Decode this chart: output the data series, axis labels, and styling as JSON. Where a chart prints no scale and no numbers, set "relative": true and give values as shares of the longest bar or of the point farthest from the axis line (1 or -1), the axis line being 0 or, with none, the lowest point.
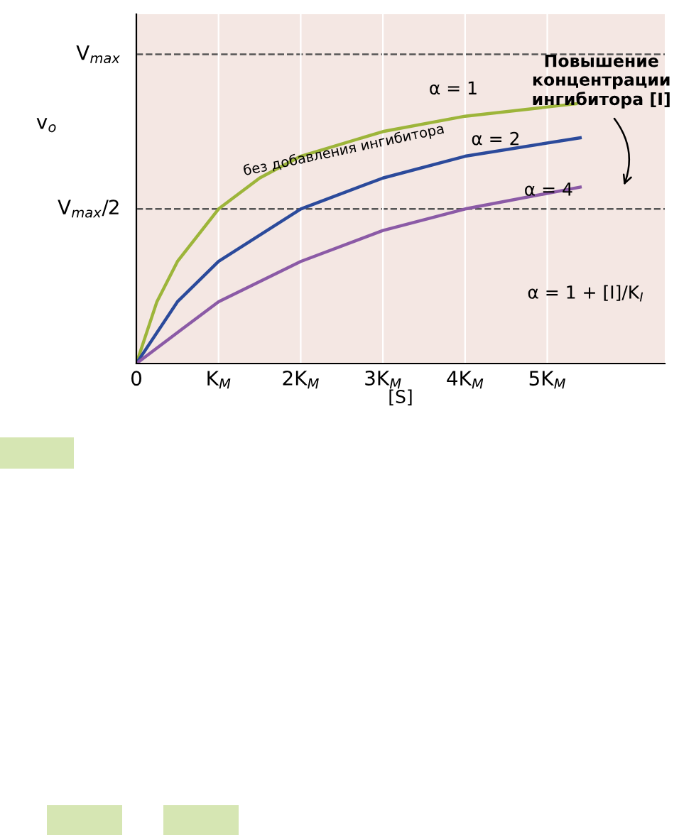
{
  "chart_data": {
    "type": "line",
    "relative": true,
    "xlabel": "[S]",
    "ylabel": "v$_{o}$",
    "xlim": [
      0,
      6.43
    ],
    "xticks": [
      0,
      {
        "value": 1,
        "label": "K$_{M}$"
      },
      {
        "value": 2,
        "label": "2K$_{M}$"
      },
      {
        "value": 3,
        "label": "3K$_{M}$"
      },
      {
        "value": 4,
        "label": "4K$_{M}$"
      },
      {
        "value": 5,
        "label": "5K$_{M}$"
      }
    ],
    "grid": "x",
    "legend": false,
    "marker": "none",
    "line_style": "solid",
    "ref_lines": [
      {
        "axis": "y",
        "value": 1.19,
        "label": "V$_{max}$",
        "color": "#555555",
        "line_style": "dashed"
      },
      {
        "axis": "y",
        "value": 0.595,
        "label": "V$_{max}$/2",
        "color": "#555555",
        "line_style": "dashed"
      }
    ],
    "series": [
      {
        "color": "#9db53a",
        "x": [
          0,
          0.25,
          0.5,
          1,
          1.5,
          2,
          3,
          4,
          5.35
        ],
        "values": [
          0,
          0.238,
          0.393,
          0.595,
          0.714,
          0.798,
          0.893,
          0.952,
          1
        ]
      },
      {
        "color": "#2b4a9b",
        "x": [
          0,
          0.5,
          1,
          2,
          3,
          4,
          5.4
        ],
        "values": [
          0,
          0.238,
          0.393,
          0.595,
          0.714,
          0.798,
          0.869
        ]
      },
      {
        "color": "#8b5aa6",
        "x": [
          0,
          1,
          2,
          3,
          4,
          5.4
        ],
        "values": [
          0,
          0.238,
          0.393,
          0.512,
          0.595,
          0.679
        ]
      }
    ],
    "annotations": [
      "α = 1",
      "α = 2",
      "α = 4",
      "без добавления ингибитора",
      "Повышение\nконцентрации\nингибитора [I]",
      "α = 1 + [I]/K$_{I}$"
    ]
  }
}
